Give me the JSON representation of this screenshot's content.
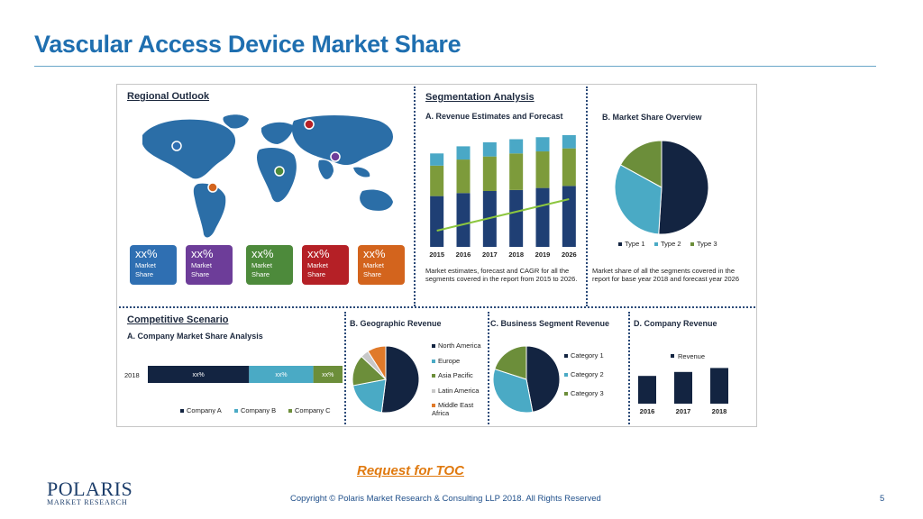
{
  "slide": {
    "title": "Vascular Access Device Market Share",
    "toc_link": "Request for TOC",
    "logo_main": "POLARIS",
    "logo_sub": "MARKET RESEARCH",
    "copyright": "Copyright © Polaris Market Research & Consulting LLP 2018. All Rights Reserved",
    "page_number": "5"
  },
  "regional": {
    "title": "Regional Outlook",
    "cards": [
      {
        "pct": "xx%",
        "label1": "Market",
        "label2": "Share",
        "color": "#2f6fb2"
      },
      {
        "pct": "xx%",
        "label1": "Market",
        "label2": "Share",
        "color": "#6d3d99"
      },
      {
        "pct": "xx%",
        "label1": "Market",
        "label2": "Share",
        "color": "#4d8a3b"
      },
      {
        "pct": "xx%",
        "label1": "Market",
        "label2": "Share",
        "color": "#b52026"
      },
      {
        "pct": "xx%",
        "label1": "Market",
        "label2": "Share",
        "color": "#d3641d"
      }
    ]
  },
  "segmentation": {
    "title": "Segmentation Analysis",
    "a_title": "A. Revenue Estimates and Forecast",
    "a_caption": "Market estimates, forecast and CAGR for all the segments covered in the report from 2015 to 2026.",
    "b_title": "B. Market Share Overview",
    "b_caption": "Market share of all the segments covered in the report for base year 2018 and forecast year 2026"
  },
  "competitive": {
    "title": "Competitive Scenario",
    "a_title": "A. Company Market Share Analysis",
    "b_title": "B. Geographic Revenue",
    "c_title": "C. Business Segment Revenue",
    "d_title": "D. Company Revenue"
  },
  "chart_data": [
    {
      "type": "bar",
      "title": "A. Revenue Estimates and Forecast",
      "categories": [
        "2015",
        "2016",
        "2017",
        "2018",
        "2019",
        "2026"
      ],
      "series": [
        {
          "values": [
            50,
            53,
            55,
            56,
            58,
            60
          ],
          "color": "#1f3f74"
        },
        {
          "values": [
            30,
            33,
            34,
            36,
            36,
            37
          ],
          "color": "#7d9b3b"
        },
        {
          "values": [
            12,
            13,
            14,
            14,
            14,
            14
          ],
          "color": "#4aa8c6"
        }
      ],
      "trend_color": "#8cc63f",
      "ylim": [
        0,
        110
      ]
    },
    {
      "type": "pie",
      "title": "B. Market Share Overview",
      "labels": [
        "Type 1",
        "Type 2",
        "Type 3"
      ],
      "values": [
        51,
        32,
        17
      ],
      "colors": [
        "#132441",
        "#4aaac5",
        "#6c8e3a"
      ]
    },
    {
      "type": "bar",
      "title": "A. Company Market Share Analysis",
      "categories": [
        "2018"
      ],
      "labels": [
        "Company A",
        "Company B",
        "Company C"
      ],
      "values": [
        52,
        33,
        15
      ],
      "value_labels": [
        "xx%",
        "xx%",
        "xx%"
      ],
      "colors": [
        "#132441",
        "#4aaac5",
        "#6c8e3a"
      ]
    },
    {
      "type": "pie",
      "title": "B. Geographic Revenue",
      "labels": [
        "North America",
        "Europe",
        "Asia Pacific",
        "Latin America",
        "Middle East Africa"
      ],
      "values": [
        52,
        20,
        15,
        4,
        9
      ],
      "colors": [
        "#132441",
        "#4aaac5",
        "#6c8e3a",
        "#c8c8c8",
        "#e07a2a"
      ]
    },
    {
      "type": "pie",
      "title": "C. Business Segment Revenue",
      "labels": [
        "Category 1",
        "Category 2",
        "Category 3"
      ],
      "values": [
        47,
        33,
        20
      ],
      "colors": [
        "#132441",
        "#4aaac5",
        "#6c8e3a"
      ]
    },
    {
      "type": "bar",
      "title": "D. Company Revenue",
      "categories": [
        "2016",
        "2017",
        "2018"
      ],
      "series": [
        {
          "name": "Revenue",
          "values": [
            28,
            32,
            36
          ],
          "color": "#132441"
        }
      ],
      "ylim": [
        0,
        40
      ]
    }
  ]
}
